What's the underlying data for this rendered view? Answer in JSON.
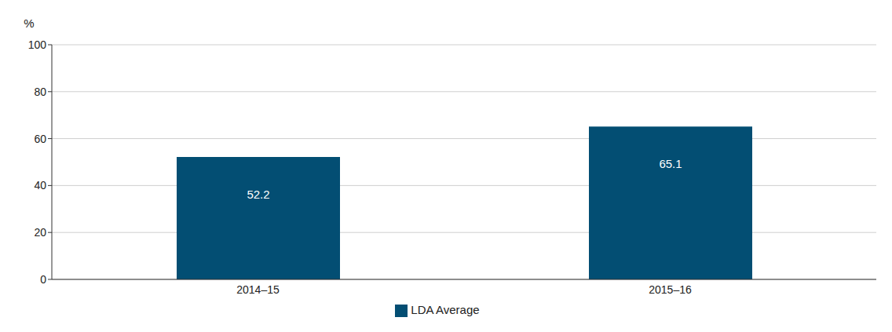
{
  "chart_data": {
    "type": "bar",
    "y_label": "%",
    "categories": [
      "2014–15",
      "2015–16"
    ],
    "series": [
      {
        "name": "LDA Average",
        "color": "#034e73",
        "values": [
          52.2,
          65.1
        ]
      }
    ],
    "ylim": [
      0,
      100
    ],
    "yticks": [
      0,
      20,
      40,
      60,
      80,
      100
    ],
    "grid": true,
    "data_labels": true,
    "legend": "bottom"
  }
}
